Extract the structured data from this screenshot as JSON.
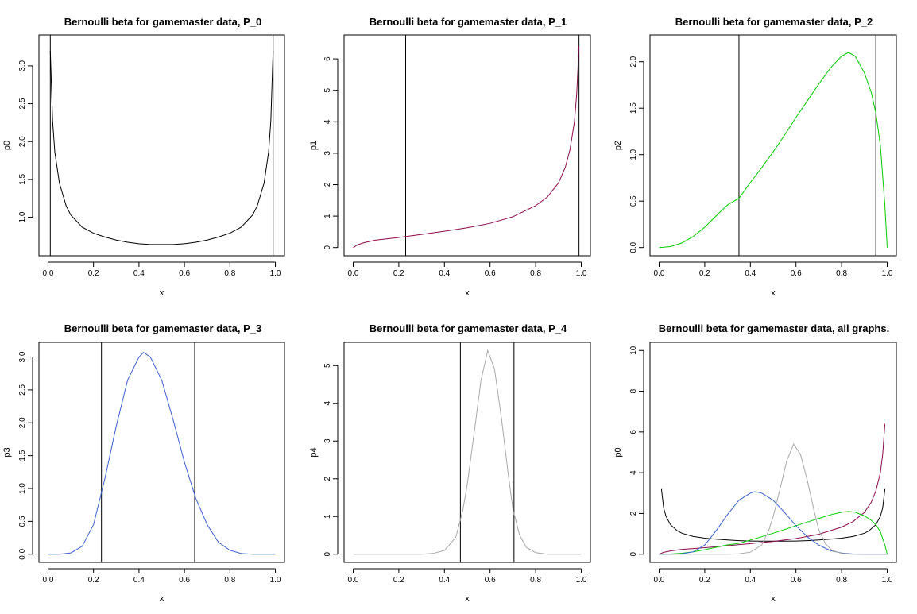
{
  "chart_data": [
    {
      "type": "line",
      "title": "Bernoulli beta for gamemaster data, P_0",
      "xlabel": "x",
      "ylabel": "p0",
      "xlim": [
        0,
        1
      ],
      "ylim": [
        0.6,
        3.3
      ],
      "xticks": [
        0,
        0.2,
        0.4,
        0.6,
        0.8,
        1
      ],
      "xtick_labels": [
        "0.0",
        "0.2",
        "0.4",
        "0.6",
        "0.8",
        "1.0"
      ],
      "yticks": [
        1,
        1.5,
        2,
        2.5,
        3
      ],
      "ytick_labels": [
        "1.0",
        "1.5",
        "2.0",
        "2.5",
        "3.0"
      ],
      "vlines": [
        0.01,
        0.99
      ],
      "series": [
        {
          "color": "#000000",
          "x": [
            0.01,
            0.02,
            0.03,
            0.05,
            0.08,
            0.1,
            0.15,
            0.2,
            0.25,
            0.3,
            0.35,
            0.4,
            0.45,
            0.5,
            0.55,
            0.6,
            0.65,
            0.7,
            0.75,
            0.8,
            0.85,
            0.9,
            0.92,
            0.95,
            0.97,
            0.98,
            0.99
          ],
          "y": [
            3.2,
            2.27,
            1.86,
            1.45,
            1.15,
            1.03,
            0.87,
            0.79,
            0.74,
            0.7,
            0.67,
            0.65,
            0.64,
            0.64,
            0.64,
            0.65,
            0.67,
            0.7,
            0.74,
            0.79,
            0.87,
            1.03,
            1.15,
            1.45,
            1.86,
            2.27,
            3.2
          ]
        }
      ]
    },
    {
      "type": "line",
      "title": "Bernoulli beta for gamemaster data, P_1",
      "xlabel": "x",
      "ylabel": "p1",
      "xlim": [
        0,
        1
      ],
      "ylim": [
        0,
        6.5
      ],
      "xticks": [
        0,
        0.2,
        0.4,
        0.6,
        0.8,
        1
      ],
      "xtick_labels": [
        "0.0",
        "0.2",
        "0.4",
        "0.6",
        "0.8",
        "1.0"
      ],
      "yticks": [
        0,
        1,
        2,
        3,
        4,
        5,
        6
      ],
      "ytick_labels": [
        "0",
        "1",
        "2",
        "3",
        "4",
        "5",
        "6"
      ],
      "vlines": [
        0.23,
        0.99
      ],
      "series": [
        {
          "color": "#8B0A50",
          "x": [
            0.0,
            0.02,
            0.05,
            0.1,
            0.15,
            0.2,
            0.3,
            0.4,
            0.5,
            0.6,
            0.7,
            0.8,
            0.85,
            0.9,
            0.93,
            0.95,
            0.97,
            0.98,
            0.99
          ],
          "y": [
            0.0,
            0.09,
            0.16,
            0.24,
            0.28,
            0.32,
            0.42,
            0.52,
            0.63,
            0.77,
            0.98,
            1.33,
            1.6,
            2.05,
            2.55,
            3.1,
            4.0,
            4.9,
            6.4
          ]
        }
      ]
    },
    {
      "type": "line",
      "title": "Bernoulli beta for gamemaster data, P_2",
      "xlabel": "x",
      "ylabel": "p2",
      "xlim": [
        0,
        1
      ],
      "ylim": [
        0,
        2.2
      ],
      "xticks": [
        0,
        0.2,
        0.4,
        0.6,
        0.8,
        1
      ],
      "xtick_labels": [
        "0.0",
        "0.2",
        "0.4",
        "0.6",
        "0.8",
        "1.0"
      ],
      "yticks": [
        0,
        0.5,
        1,
        1.5,
        2
      ],
      "ytick_labels": [
        "0.0",
        "0.5",
        "1.0",
        "1.5",
        "2.0"
      ],
      "vlines": [
        0.35,
        0.95
      ],
      "series": [
        {
          "color": "#00CD00",
          "x": [
            0.0,
            0.05,
            0.1,
            0.15,
            0.2,
            0.25,
            0.3,
            0.35,
            0.4,
            0.45,
            0.5,
            0.55,
            0.6,
            0.65,
            0.7,
            0.75,
            0.8,
            0.83,
            0.86,
            0.9,
            0.93,
            0.95,
            0.97,
            0.99,
            1.0
          ],
          "y": [
            0.0,
            0.01,
            0.05,
            0.12,
            0.22,
            0.34,
            0.46,
            0.53,
            0.7,
            0.86,
            1.03,
            1.21,
            1.4,
            1.58,
            1.76,
            1.93,
            2.06,
            2.1,
            2.06,
            1.88,
            1.67,
            1.45,
            1.1,
            0.45,
            0.0
          ]
        }
      ]
    },
    {
      "type": "line",
      "title": "Bernoulli beta for gamemaster data, P_3",
      "xlabel": "x",
      "ylabel": "p3",
      "xlim": [
        0,
        1
      ],
      "ylim": [
        0,
        3.1
      ],
      "xticks": [
        0,
        0.2,
        0.4,
        0.6,
        0.8,
        1
      ],
      "xtick_labels": [
        "0.0",
        "0.2",
        "0.4",
        "0.6",
        "0.8",
        "1.0"
      ],
      "yticks": [
        0,
        0.5,
        1,
        1.5,
        2,
        2.5,
        3
      ],
      "ytick_labels": [
        "0.0",
        "0.5",
        "1.0",
        "1.5",
        "2.0",
        "2.5",
        "3.0"
      ],
      "vlines": [
        0.235,
        0.645
      ],
      "series": [
        {
          "color": "#3A5FCD",
          "x": [
            0.0,
            0.05,
            0.1,
            0.15,
            0.2,
            0.25,
            0.3,
            0.35,
            0.4,
            0.42,
            0.45,
            0.5,
            0.55,
            0.6,
            0.65,
            0.7,
            0.75,
            0.8,
            0.85,
            0.9,
            0.95,
            1.0
          ],
          "y": [
            0.0,
            0.0,
            0.02,
            0.12,
            0.45,
            1.15,
            1.95,
            2.65,
            3.0,
            3.07,
            3.0,
            2.65,
            2.05,
            1.4,
            0.85,
            0.45,
            0.18,
            0.06,
            0.01,
            0.0,
            0.0,
            0.0
          ]
        }
      ]
    },
    {
      "type": "line",
      "title": "Bernoulli beta for gamemaster data, P_4",
      "xlabel": "x",
      "ylabel": "p4",
      "xlim": [
        0,
        1
      ],
      "ylim": [
        0,
        5.4
      ],
      "xticks": [
        0,
        0.2,
        0.4,
        0.6,
        0.8,
        1
      ],
      "xtick_labels": [
        "0.0",
        "0.2",
        "0.4",
        "0.6",
        "0.8",
        "1.0"
      ],
      "yticks": [
        0,
        1,
        2,
        3,
        4,
        5
      ],
      "ytick_labels": [
        "0",
        "1",
        "2",
        "3",
        "4",
        "5"
      ],
      "vlines": [
        0.47,
        0.705
      ],
      "series": [
        {
          "color": "#A8A8A8",
          "x": [
            0.0,
            0.1,
            0.2,
            0.3,
            0.35,
            0.4,
            0.45,
            0.48,
            0.5,
            0.53,
            0.56,
            0.59,
            0.62,
            0.65,
            0.68,
            0.7,
            0.73,
            0.76,
            0.8,
            0.85,
            0.9,
            1.0
          ],
          "y": [
            0.0,
            0.0,
            0.0,
            0.0,
            0.02,
            0.1,
            0.45,
            1.15,
            1.85,
            3.2,
            4.6,
            5.4,
            4.9,
            3.6,
            2.1,
            1.2,
            0.5,
            0.18,
            0.04,
            0.0,
            0.0,
            0.0
          ]
        }
      ]
    },
    {
      "type": "line",
      "title": "Bernoulli beta for gamemaster data, all graphs.",
      "xlabel": "x",
      "ylabel": "p0",
      "xlim": [
        0,
        1
      ],
      "ylim": [
        0,
        10
      ],
      "xticks": [
        0,
        0.2,
        0.4,
        0.6,
        0.8,
        1
      ],
      "xtick_labels": [
        "0.0",
        "0.2",
        "0.4",
        "0.6",
        "0.8",
        "1.0"
      ],
      "yticks": [
        0,
        2,
        4,
        6,
        8,
        10
      ],
      "ytick_labels": [
        "0",
        "2",
        "4",
        "6",
        "8",
        "10"
      ],
      "vlines": [],
      "series": [
        {
          "color": "#000000",
          "x": [
            0.01,
            0.02,
            0.03,
            0.05,
            0.08,
            0.1,
            0.15,
            0.2,
            0.25,
            0.3,
            0.35,
            0.4,
            0.45,
            0.5,
            0.55,
            0.6,
            0.65,
            0.7,
            0.75,
            0.8,
            0.85,
            0.9,
            0.92,
            0.95,
            0.97,
            0.98,
            0.99
          ],
          "y": [
            3.2,
            2.27,
            1.86,
            1.45,
            1.15,
            1.03,
            0.87,
            0.79,
            0.74,
            0.7,
            0.67,
            0.65,
            0.64,
            0.64,
            0.64,
            0.65,
            0.67,
            0.7,
            0.74,
            0.79,
            0.87,
            1.03,
            1.15,
            1.45,
            1.86,
            2.27,
            3.2
          ]
        },
        {
          "color": "#8B0A50",
          "x": [
            0.0,
            0.02,
            0.05,
            0.1,
            0.15,
            0.2,
            0.3,
            0.4,
            0.5,
            0.6,
            0.7,
            0.8,
            0.85,
            0.9,
            0.93,
            0.95,
            0.97,
            0.98,
            0.99
          ],
          "y": [
            0.0,
            0.09,
            0.16,
            0.24,
            0.28,
            0.32,
            0.42,
            0.52,
            0.63,
            0.77,
            0.98,
            1.33,
            1.6,
            2.05,
            2.55,
            3.1,
            4.0,
            4.9,
            6.4
          ]
        },
        {
          "color": "#00CD00",
          "x": [
            0.0,
            0.05,
            0.1,
            0.15,
            0.2,
            0.25,
            0.3,
            0.35,
            0.4,
            0.45,
            0.5,
            0.55,
            0.6,
            0.65,
            0.7,
            0.75,
            0.8,
            0.83,
            0.86,
            0.9,
            0.93,
            0.95,
            0.97,
            0.99,
            1.0
          ],
          "y": [
            0.0,
            0.01,
            0.05,
            0.12,
            0.22,
            0.34,
            0.46,
            0.53,
            0.7,
            0.86,
            1.03,
            1.21,
            1.4,
            1.58,
            1.76,
            1.93,
            2.06,
            2.1,
            2.06,
            1.88,
            1.67,
            1.45,
            1.1,
            0.45,
            0.0
          ]
        },
        {
          "color": "#3A5FCD",
          "x": [
            0.0,
            0.05,
            0.1,
            0.15,
            0.2,
            0.25,
            0.3,
            0.35,
            0.4,
            0.42,
            0.45,
            0.5,
            0.55,
            0.6,
            0.65,
            0.7,
            0.75,
            0.8,
            0.85,
            0.9,
            0.95,
            1.0
          ],
          "y": [
            0.0,
            0.0,
            0.02,
            0.12,
            0.45,
            1.15,
            1.95,
            2.65,
            3.0,
            3.07,
            3.0,
            2.65,
            2.05,
            1.4,
            0.85,
            0.45,
            0.18,
            0.06,
            0.01,
            0.0,
            0.0,
            0.0
          ]
        },
        {
          "color": "#A8A8A8",
          "x": [
            0.0,
            0.1,
            0.2,
            0.3,
            0.35,
            0.4,
            0.45,
            0.48,
            0.5,
            0.53,
            0.56,
            0.59,
            0.62,
            0.65,
            0.68,
            0.7,
            0.73,
            0.76,
            0.8,
            0.85,
            0.9,
            1.0
          ],
          "y": [
            0.0,
            0.0,
            0.0,
            0.0,
            0.02,
            0.1,
            0.45,
            1.15,
            1.85,
            3.2,
            4.6,
            5.4,
            4.9,
            3.6,
            2.1,
            1.2,
            0.5,
            0.18,
            0.04,
            0.0,
            0.0,
            0.0
          ]
        }
      ]
    }
  ]
}
